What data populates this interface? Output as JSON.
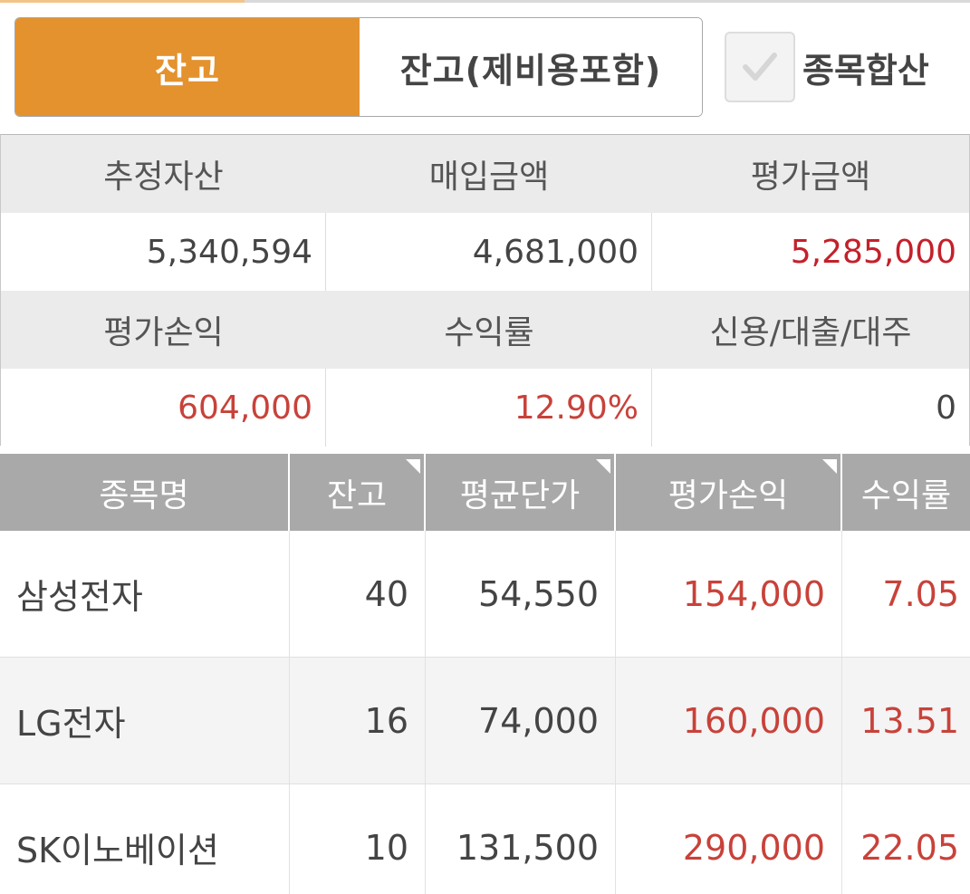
{
  "toggle": {
    "balance_label": "잔고",
    "balance_with_fees_label": "잔고(제비용포함)"
  },
  "aggregate": {
    "checked": true,
    "label": "종목합산"
  },
  "summary": {
    "estimated_assets": {
      "label": "추정자산",
      "value": "5,340,594"
    },
    "purchase_amount": {
      "label": "매입금액",
      "value": "4,681,000"
    },
    "evaluation_amount": {
      "label": "평가금액",
      "value": "5,285,000"
    },
    "evaluation_pnl": {
      "label": "평가손익",
      "value": "604,000"
    },
    "return_rate": {
      "label": "수익률",
      "value": "12.90%"
    },
    "credit_loan": {
      "label": "신용/대출/대주",
      "value": "0"
    }
  },
  "holdings": {
    "columns": [
      "종목명",
      "잔고",
      "평균단가",
      "평가손익",
      "수익률"
    ],
    "rows": [
      {
        "name": "삼성전자",
        "qty": "40",
        "avg_price": "54,550",
        "pnl": "154,000",
        "rate": "7.05"
      },
      {
        "name": "LG전자",
        "qty": "16",
        "avg_price": "74,000",
        "pnl": "160,000",
        "rate": "13.51"
      },
      {
        "name": "SK이노베이션",
        "qty": "10",
        "avg_price": "131,500",
        "pnl": "290,000",
        "rate": "22.05"
      }
    ]
  },
  "colors": {
    "accent": "#e4922e",
    "profit_red": "#c8423a",
    "header_gray": "#a9a9a9"
  },
  "icons": {
    "checkbox": "check-icon"
  }
}
